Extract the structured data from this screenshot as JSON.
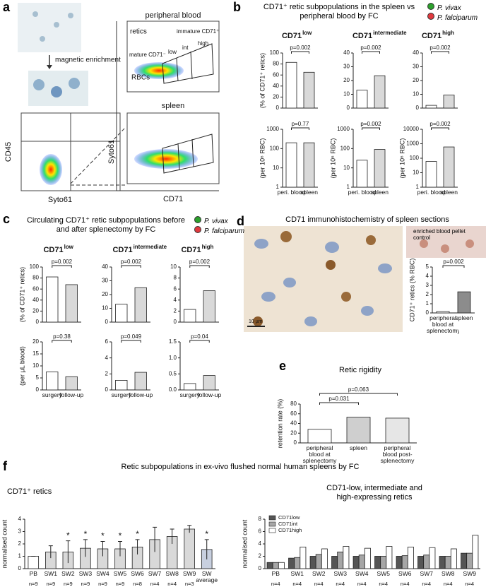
{
  "panel_labels": [
    "a",
    "b",
    "c",
    "d",
    "e",
    "f"
  ],
  "panel_a": {
    "magnetic": "magnetic enrichment",
    "cd45": "CD45",
    "syto61_left": "Syto61",
    "peripheral": "peripheral blood",
    "retics": "retics",
    "immature": "immature CD71⁺",
    "mature": "mature CD71⁻",
    "rbcs": "RBCs",
    "low": "low",
    "int": "int",
    "high": "high",
    "spleen": "spleen",
    "syto61_right": "Syto61",
    "cd71": "CD71"
  },
  "panel_b": {
    "title": "CD71⁺ retic subpopulations in the spleen vs peripheral blood by FC",
    "legend": [
      {
        "name": "P. vivax",
        "color": "#2ca02c"
      },
      {
        "name": "P. falciparum",
        "color": "#e0393e"
      }
    ]
  },
  "panel_c": {
    "title": "Circulating CD71⁺ retic subpopulations before and after splenectomy by FC",
    "legend": [
      {
        "name": "P. vivax",
        "color": "#2ca02c"
      },
      {
        "name": "P. falciparum",
        "color": "#e0393e"
      }
    ]
  },
  "panel_d": {
    "title": "CD71 immunohistochemistry of spleen sections",
    "control": "enriched blood pellet control",
    "scale": "10 µm"
  },
  "panel_e": {
    "title": "Retic rigidity"
  },
  "panel_f": {
    "title": "Retic subpopulations in ex-vivo flushed normal human spleens by FC",
    "left_title": "CD71⁺ retics",
    "right_title": "CD71-low, intermediate and high-expressing retics"
  },
  "chart_data": [
    {
      "type": "bar",
      "title": "CD71",
      "title_sup": "low",
      "ylabel": "(% of CD71⁺ retics)",
      "categories": [
        null,
        null
      ],
      "values": [
        83,
        65
      ],
      "colors": [
        "#ffffff",
        "#d9d9d9"
      ],
      "ylim": [
        0,
        100
      ],
      "yticks": [
        0,
        20,
        40,
        60,
        80,
        100
      ],
      "comparisons": [
        {
          "label": "p=0.002",
          "pair": [
            0,
            1
          ]
        }
      ]
    },
    {
      "type": "bar",
      "title": "CD71",
      "title_sup": "intermediate",
      "categories": [
        null,
        null
      ],
      "values": [
        13,
        23.5
      ],
      "colors": [
        "#ffffff",
        "#d9d9d9"
      ],
      "ylim": [
        0,
        40
      ],
      "yticks": [
        0,
        10,
        20,
        30,
        40
      ],
      "comparisons": [
        {
          "label": "p=0.002",
          "pair": [
            0,
            1
          ]
        }
      ]
    },
    {
      "type": "bar",
      "title": "CD71",
      "title_sup": "high",
      "categories": [
        null,
        null
      ],
      "values": [
        2,
        9.5
      ],
      "colors": [
        "#ffffff",
        "#d9d9d9"
      ],
      "ylim": [
        0,
        40
      ],
      "yticks": [
        0,
        10,
        20,
        30,
        40
      ],
      "comparisons": [
        {
          "label": "p=0.002",
          "pair": [
            0,
            1
          ]
        }
      ]
    },
    {
      "type": "bar",
      "ylabel": "(per 10⁶ RBC)",
      "categories": [
        "peri. blood",
        "spleen"
      ],
      "values": [
        200,
        200
      ],
      "colors": [
        "#ffffff",
        "#d9d9d9"
      ],
      "log": true,
      "ylim": [
        1,
        1000
      ],
      "yticks": [
        1,
        10,
        100,
        1000
      ],
      "comparisons": [
        {
          "label": "p=0.77",
          "pair": [
            0,
            1
          ]
        }
      ]
    },
    {
      "type": "bar",
      "ylabel": "(per 10⁶ RBC)",
      "categories": [
        "peri. blood",
        "spleen"
      ],
      "values": [
        25,
        90
      ],
      "colors": [
        "#ffffff",
        "#d9d9d9"
      ],
      "log": true,
      "ylim": [
        1,
        1000
      ],
      "yticks": [
        1,
        10,
        100,
        1000
      ],
      "comparisons": [
        {
          "label": "p=0.002",
          "pair": [
            0,
            1
          ]
        }
      ]
    },
    {
      "type": "bar",
      "ylabel": "(per 10⁶ RBC)",
      "categories": [
        "peri. blood",
        "spleen"
      ],
      "values": [
        60,
        600
      ],
      "colors": [
        "#ffffff",
        "#d9d9d9"
      ],
      "log": true,
      "ylim": [
        1,
        10000
      ],
      "yticks": [
        1,
        10,
        100,
        1000,
        10000
      ],
      "comparisons": [
        {
          "label": "p=0.002",
          "pair": [
            0,
            1
          ]
        }
      ]
    },
    {
      "type": "bar",
      "title": "CD71",
      "title_sup": "low",
      "ylabel": "(% of CD71⁺ retics)",
      "categories": [
        null,
        null
      ],
      "values": [
        82,
        68
      ],
      "colors": [
        "#ffffff",
        "#d9d9d9"
      ],
      "ylim": [
        0,
        100
      ],
      "yticks": [
        0,
        20,
        40,
        60,
        80,
        100
      ],
      "comparisons": [
        {
          "label": "p=0.002",
          "pair": [
            0,
            1
          ]
        }
      ]
    },
    {
      "type": "bar",
      "title": "CD71",
      "title_sup": "intermediate",
      "categories": [
        null,
        null
      ],
      "values": [
        13,
        25
      ],
      "colors": [
        "#ffffff",
        "#d9d9d9"
      ],
      "ylim": [
        0,
        40
      ],
      "yticks": [
        0,
        10,
        20,
        30,
        40
      ],
      "comparisons": [
        {
          "label": "p=0.002",
          "pair": [
            0,
            1
          ]
        }
      ]
    },
    {
      "type": "bar",
      "title": "CD71",
      "title_sup": "high",
      "categories": [
        null,
        null
      ],
      "values": [
        2.3,
        5.7
      ],
      "colors": [
        "#ffffff",
        "#d9d9d9"
      ],
      "ylim": [
        0,
        10
      ],
      "yticks": [
        0,
        2,
        4,
        6,
        8,
        10
      ],
      "comparisons": [
        {
          "label": "p=0.002",
          "pair": [
            0,
            1
          ]
        }
      ]
    },
    {
      "type": "bar",
      "ylabel": "(per μL blood)",
      "categories": [
        "surgery",
        "follow-up"
      ],
      "values": [
        7.5,
        5.5
      ],
      "colors": [
        "#ffffff",
        "#d9d9d9"
      ],
      "ylim": [
        0,
        20
      ],
      "yticks": [
        0,
        5,
        10,
        15,
        20
      ],
      "comparisons": [
        {
          "label": "p=0.38",
          "pair": [
            0,
            1
          ]
        }
      ]
    },
    {
      "type": "bar",
      "categories": [
        "surgery",
        "follow-up"
      ],
      "values": [
        1.2,
        2.2
      ],
      "colors": [
        "#ffffff",
        "#d9d9d9"
      ],
      "ylim": [
        0,
        6
      ],
      "yticks": [
        0,
        2,
        4,
        6
      ],
      "comparisons": [
        {
          "label": "p=0.049",
          "pair": [
            0,
            1
          ]
        }
      ]
    },
    {
      "type": "bar",
      "categories": [
        "surgery",
        "follow-up"
      ],
      "values": [
        0.2,
        0.45
      ],
      "colors": [
        "#ffffff",
        "#d9d9d9"
      ],
      "ylim": [
        0,
        1.5
      ],
      "yticks": [
        {
          "value": 0,
          "label": "0.0"
        },
        0.5,
        {
          "value": 1,
          "label": "1.0"
        },
        1.5
      ],
      "comparisons": [
        {
          "label": "p=0.04",
          "pair": [
            0,
            1
          ]
        }
      ]
    },
    {
      "type": "bar",
      "ylabel": "CD71⁺ retics (% RBC)",
      "categories": [
        "peripheral blood at splenectomy",
        "spleen"
      ],
      "values": [
        0.15,
        2.3
      ],
      "colors": [
        "#ffffff",
        "#8c8c8c"
      ],
      "ylim": [
        0,
        5
      ],
      "yticks": [
        0,
        1,
        2,
        3,
        4,
        5
      ],
      "comparisons": [
        {
          "label": "p=0.002",
          "pair": [
            0,
            1
          ]
        }
      ]
    },
    {
      "type": "bar",
      "ylabel": "retention rate (%)",
      "categories": [
        "peripheral blood at splenectomy",
        "spleen",
        "peripheral blood post-splenectomy"
      ],
      "values": [
        28,
        53,
        51
      ],
      "colors": [
        "#ffffff",
        "#cfcfcf",
        "#e6e6e6"
      ],
      "ylim": [
        0,
        80
      ],
      "yticks": [
        0,
        20,
        40,
        60,
        80
      ],
      "comparisons": [
        {
          "label": "p=0.031",
          "pair": [
            0,
            1
          ]
        },
        {
          "label": "p=0.063",
          "pair": [
            0,
            2
          ]
        }
      ]
    },
    {
      "type": "bar",
      "ylabel": "normalised count",
      "categories": [
        "PB",
        "SW1",
        "SW2",
        "SW3",
        "SW4",
        "SW5",
        "SW6",
        "SW7",
        "SW8",
        "SW9",
        "SW average"
      ],
      "n_labels": [
        "n=9",
        "n=9",
        "n=9",
        "n=9",
        "n=9",
        "n=9",
        "n=8",
        "n=4",
        "n=4",
        "n=3",
        null
      ],
      "values": [
        1,
        1.35,
        1.35,
        1.65,
        1.6,
        1.6,
        1.75,
        2.35,
        2.6,
        3.2,
        1.55
      ],
      "errors": [
        0,
        0.5,
        0.9,
        0.7,
        0.6,
        0.6,
        0.6,
        1.0,
        0.6,
        0.3,
        0.8
      ],
      "stars": [
        null,
        null,
        "*",
        "*",
        "*",
        "*",
        "*",
        null,
        null,
        null,
        "*"
      ],
      "colors": [
        "#ffffff",
        "#d9d9d9",
        "#d9d9d9",
        "#d9d9d9",
        "#d9d9d9",
        "#d9d9d9",
        "#d9d9d9",
        "#d9d9d9",
        "#d9d9d9",
        "#d9d9d9",
        "#c8d0e0"
      ],
      "ylim": [
        0,
        4
      ],
      "yticks": [
        0,
        1,
        2,
        3,
        4
      ]
    },
    {
      "type": "bar",
      "ylabel": "normalised count",
      "categories": [
        "PB",
        "SW1",
        "SW2",
        "SW3",
        "SW4",
        "SW5",
        "SW6",
        "SW7",
        "SW8",
        "SW9"
      ],
      "n_labels": [
        "n=4",
        "n=4",
        "n=4",
        "n=4",
        "n=4",
        "n=4",
        "n=4",
        "n=4",
        "n=4",
        "n=4"
      ],
      "legend": true,
      "series": [
        {
          "name": "CD71low",
          "color": "#555555",
          "values": [
            1,
            1.7,
            2,
            2,
            2,
            2,
            2,
            2,
            2,
            2.5
          ]
        },
        {
          "name": "CD71int",
          "color": "#a6a6a6",
          "values": [
            1,
            1.8,
            2.3,
            2.7,
            2.2,
            2,
            2.1,
            2.2,
            2,
            2.5
          ]
        },
        {
          "name": "CD71high",
          "color": "#ffffff",
          "values": [
            1,
            3.5,
            3.2,
            3.6,
            3.3,
            3.6,
            3.5,
            3.4,
            3.2,
            5.4
          ]
        }
      ],
      "ylim": [
        0,
        8
      ],
      "yticks": [
        0,
        2,
        4,
        6,
        8
      ]
    }
  ]
}
